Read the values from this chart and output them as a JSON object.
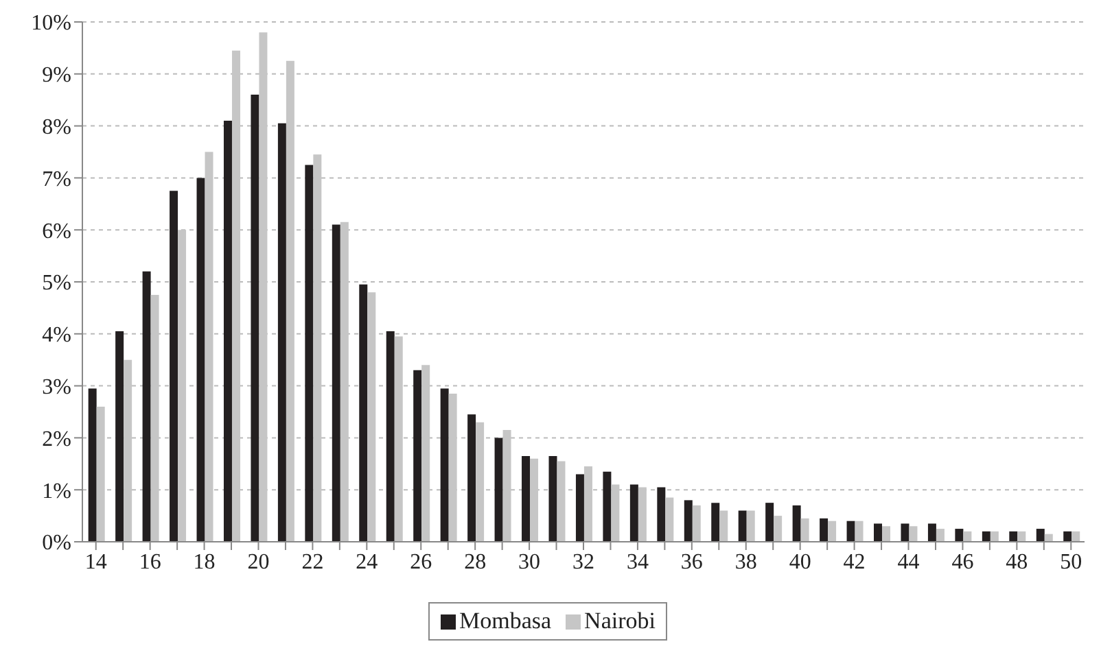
{
  "chart_data": {
    "type": "bar",
    "categories": [
      "14",
      null,
      "16",
      null,
      "18",
      null,
      "20",
      null,
      "22",
      null,
      "24",
      null,
      "26",
      null,
      "28",
      null,
      "30",
      null,
      "32",
      null,
      "34",
      null,
      "36",
      null,
      "38",
      null,
      "40",
      null,
      "42",
      null,
      "44",
      null,
      "46",
      null,
      "48",
      null,
      "50"
    ],
    "series": [
      {
        "name": "Mombasa",
        "color": "#231f20",
        "values": [
          2.95,
          4.05,
          5.2,
          6.75,
          7.0,
          8.1,
          8.6,
          8.05,
          7.25,
          6.1,
          4.95,
          4.05,
          3.3,
          2.95,
          2.45,
          2.0,
          1.65,
          1.65,
          1.3,
          1.35,
          1.1,
          1.05,
          0.8,
          0.75,
          0.6,
          0.75,
          0.7,
          0.45,
          0.4,
          0.35,
          0.35,
          0.35,
          0.25,
          0.2,
          0.2,
          0.25,
          0.2
        ]
      },
      {
        "name": "Nairobi",
        "color": "#c6c6c6",
        "values": [
          2.6,
          3.5,
          4.75,
          6.0,
          7.5,
          9.45,
          9.8,
          9.25,
          7.45,
          6.15,
          4.8,
          3.95,
          3.4,
          2.85,
          2.3,
          2.15,
          1.6,
          1.55,
          1.45,
          1.1,
          1.05,
          0.85,
          0.7,
          0.6,
          0.6,
          0.5,
          0.45,
          0.4,
          0.4,
          0.3,
          0.3,
          0.25,
          0.2,
          0.2,
          0.2,
          0.15,
          0.2
        ]
      }
    ],
    "ylim": [
      0,
      10
    ],
    "yticks": [
      {
        "value": 0,
        "label": "0%"
      },
      {
        "value": 1,
        "label": "1%"
      },
      {
        "value": 2,
        "label": "2%"
      },
      {
        "value": 3,
        "label": "3%"
      },
      {
        "value": 4,
        "label": "4%"
      },
      {
        "value": 5,
        "label": "5%"
      },
      {
        "value": 6,
        "label": "6%"
      },
      {
        "value": 7,
        "label": "7%"
      },
      {
        "value": 8,
        "label": "8%"
      },
      {
        "value": 9,
        "label": "9%"
      },
      {
        "value": 10,
        "label": "10%"
      }
    ],
    "grid": "y",
    "legend": "bottom"
  }
}
